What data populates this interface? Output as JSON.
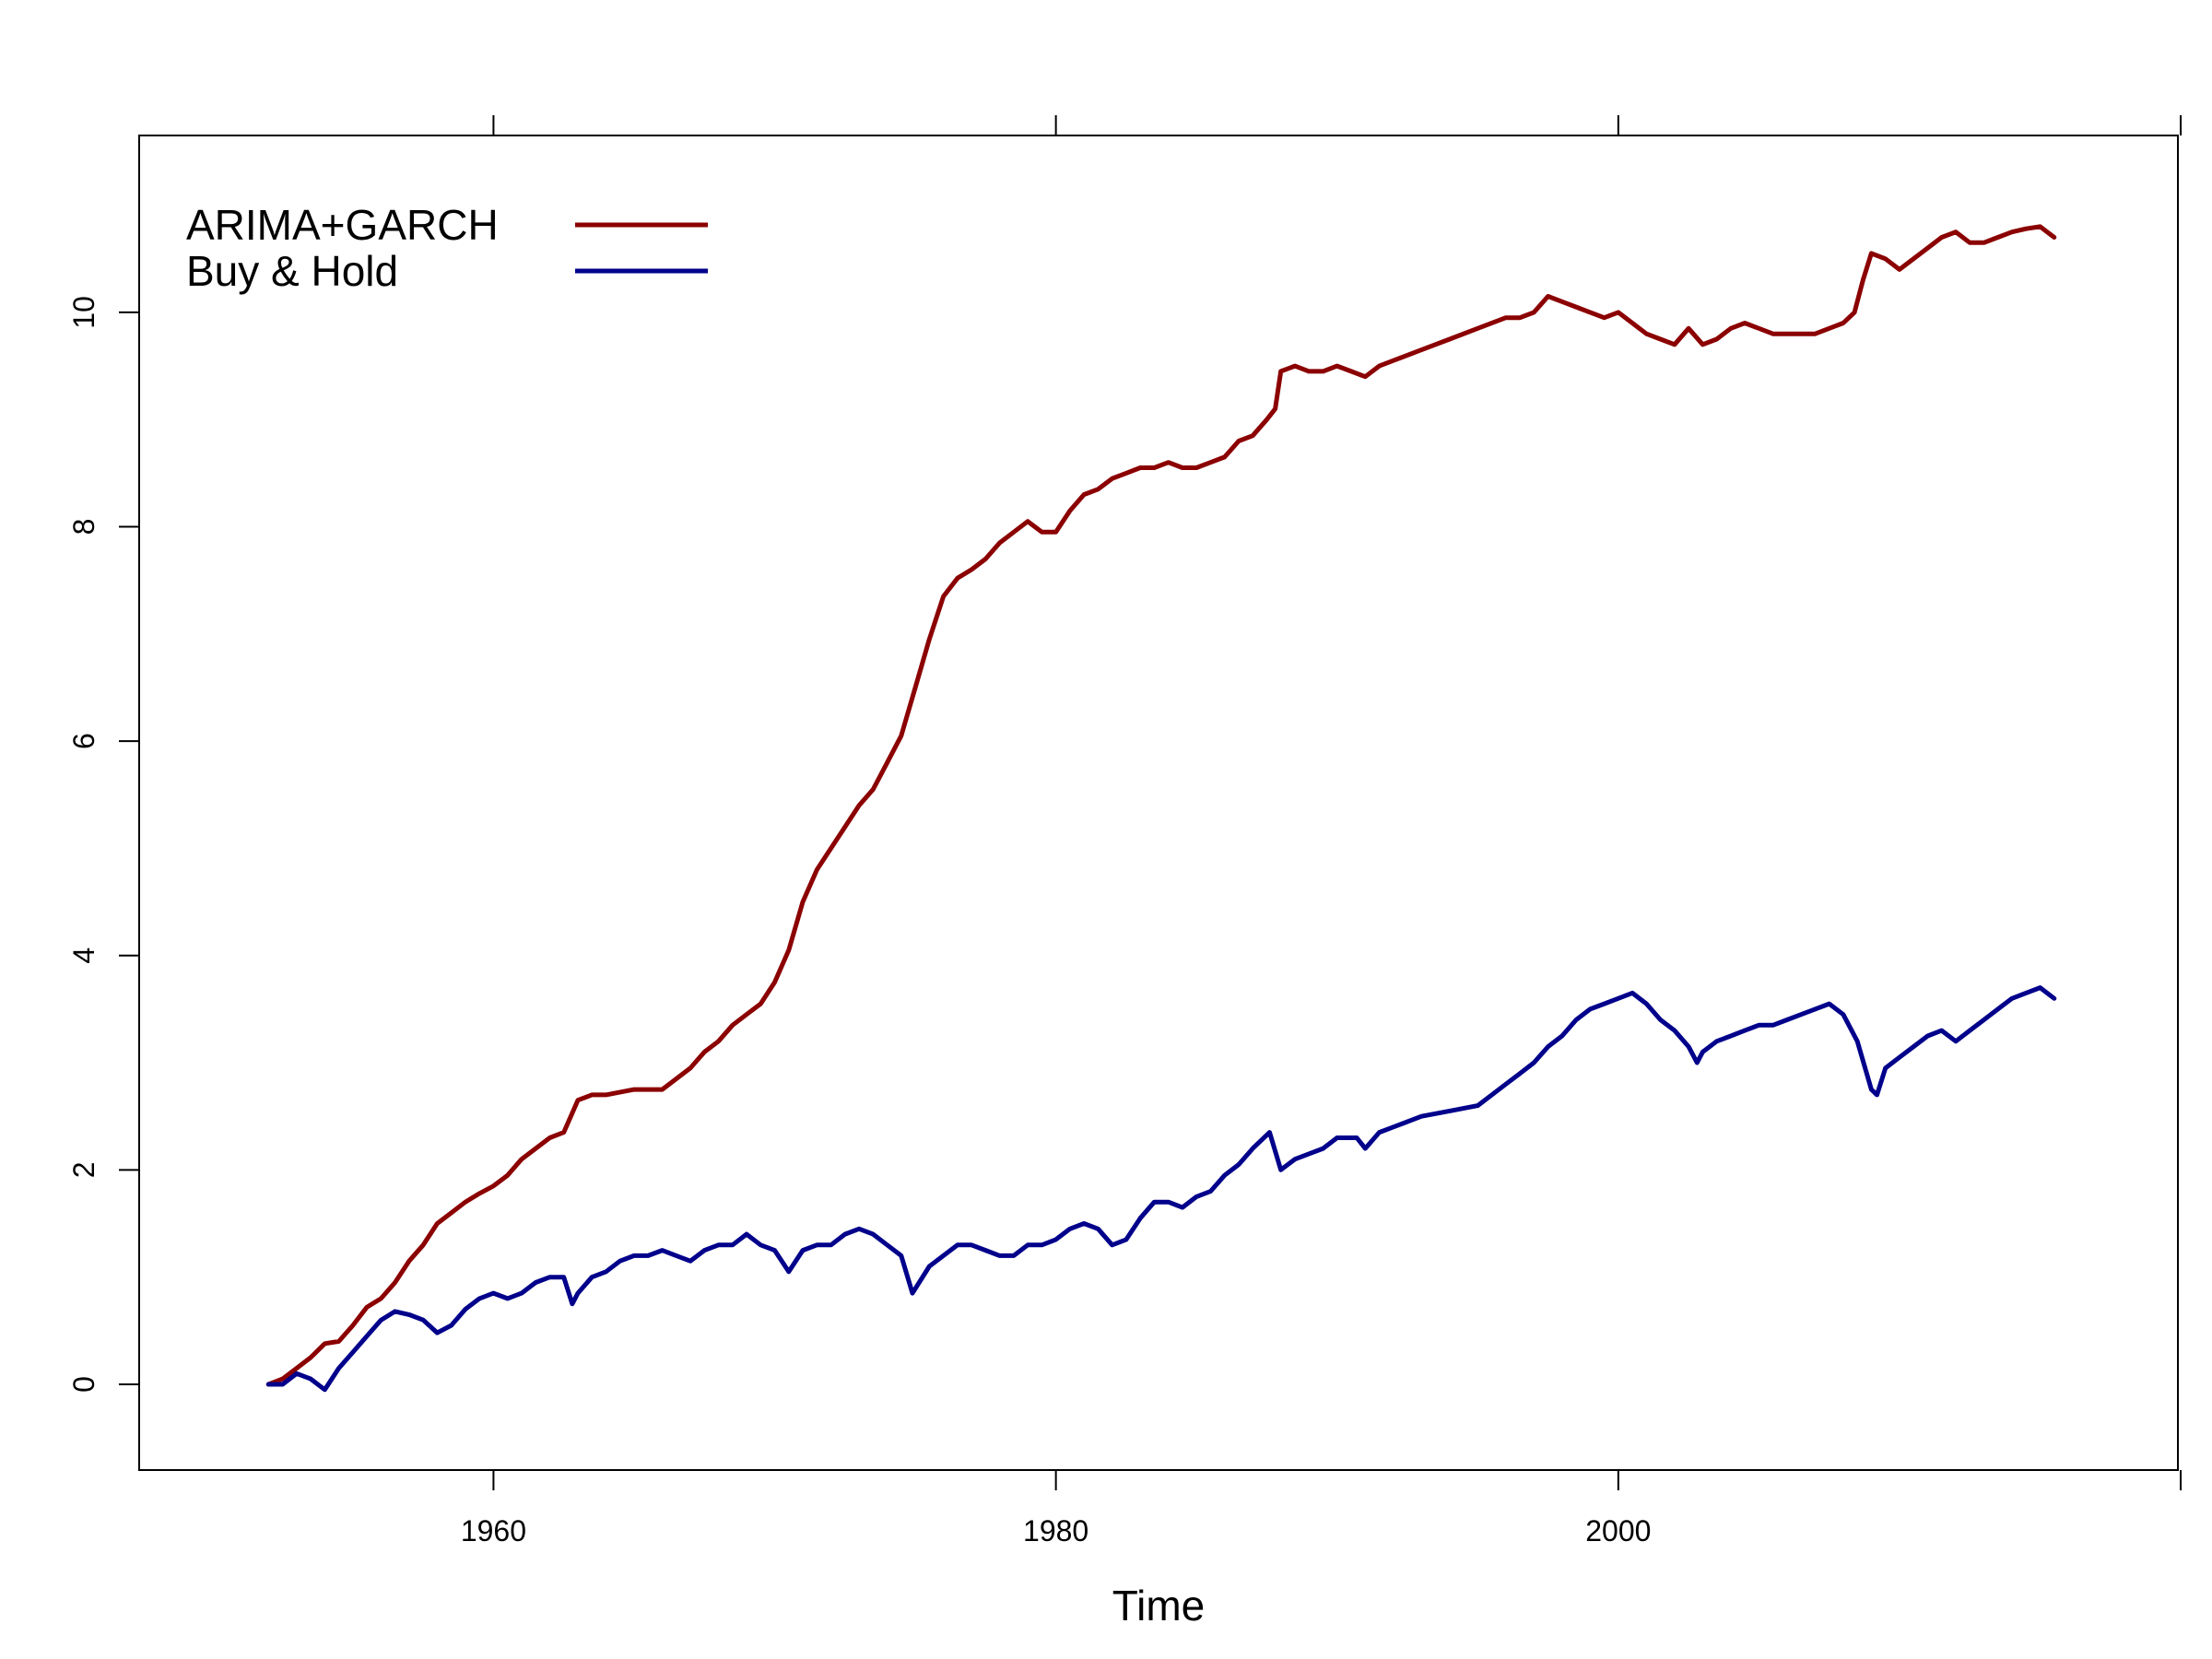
{
  "chart_data": {
    "type": "line",
    "xlabel": "Time",
    "ylabel": "",
    "xlim": [
      1947.4,
      2019.9
    ],
    "ylim": [
      -0.8,
      11.65
    ],
    "x_ticks": [
      1960,
      1980,
      2000
    ],
    "y_ticks": [
      0,
      2,
      4,
      6,
      8,
      10
    ],
    "x_tick_labels": [
      "1960",
      "1980",
      "2000"
    ],
    "y_tick_labels": [
      "0",
      "2",
      "4",
      "6",
      "8",
      "10"
    ],
    "grid": false,
    "legend_position": "top-left",
    "series": [
      {
        "name": "ARIMA+GARCH",
        "color": "#8b0000",
        "x": [
          1952.0,
          1952.5,
          1953.0,
          1953.5,
          1954.0,
          1954.5,
          1955.0,
          1955.5,
          1956.0,
          1956.5,
          1957.0,
          1957.5,
          1958.0,
          1958.5,
          1959.0,
          1959.5,
          1960.0,
          1960.5,
          1961.0,
          1961.5,
          1962.0,
          1962.5,
          1963.0,
          1963.5,
          1964.0,
          1965.0,
          1966.0,
          1967.0,
          1967.5,
          1968.0,
          1968.5,
          1969.0,
          1969.5,
          1970.0,
          1970.5,
          1971.0,
          1971.5,
          1972.0,
          1972.5,
          1973.0,
          1973.5,
          1974.0,
          1974.5,
          1975.0,
          1975.5,
          1976.0,
          1976.5,
          1977.0,
          1977.5,
          1978.0,
          1978.5,
          1979.0,
          1979.5,
          1980.0,
          1980.5,
          1981.0,
          1981.5,
          1982.0,
          1982.5,
          1983.0,
          1983.5,
          1984.0,
          1984.5,
          1985.0,
          1985.5,
          1986.0,
          1986.5,
          1987.0,
          1987.5,
          1987.8,
          1988.0,
          1988.5,
          1989.0,
          1989.5,
          1990.0,
          1990.5,
          1991.0,
          1991.5,
          1992.0,
          1993.0,
          1994.0,
          1995.0,
          1996.0,
          1996.5,
          1997.0,
          1997.5,
          1998.0,
          1998.5,
          1999.0,
          1999.5,
          2000.0,
          2000.5,
          2001.0,
          2001.5,
          2002.0,
          2002.5,
          2003.0,
          2003.5,
          2004.0,
          2004.5,
          2005.0,
          2005.5,
          2006.0,
          2006.5,
          2007.0,
          2007.5,
          2008.0,
          2008.4,
          2008.7,
          2009.0,
          2009.5,
          2010.0,
          2010.5,
          2011.0,
          2011.5,
          2012.0,
          2012.5,
          2013.0,
          2013.5,
          2014.0,
          2014.5,
          2015.0,
          2015.5
        ],
        "y": [
          0.0,
          0.05,
          0.15,
          0.25,
          0.38,
          0.4,
          0.55,
          0.72,
          0.8,
          0.95,
          1.15,
          1.3,
          1.5,
          1.6,
          1.7,
          1.78,
          1.85,
          1.95,
          2.1,
          2.2,
          2.3,
          2.35,
          2.65,
          2.7,
          2.7,
          2.75,
          2.75,
          2.95,
          3.1,
          3.2,
          3.35,
          3.45,
          3.55,
          3.75,
          4.05,
          4.5,
          4.8,
          5.0,
          5.2,
          5.4,
          5.55,
          5.8,
          6.05,
          6.5,
          6.95,
          7.35,
          7.52,
          7.6,
          7.7,
          7.85,
          7.95,
          8.05,
          7.95,
          7.95,
          8.15,
          8.3,
          8.35,
          8.45,
          8.5,
          8.55,
          8.55,
          8.6,
          8.55,
          8.55,
          8.6,
          8.65,
          8.8,
          8.85,
          9.0,
          9.1,
          9.45,
          9.5,
          9.45,
          9.45,
          9.5,
          9.45,
          9.4,
          9.5,
          9.55,
          9.65,
          9.75,
          9.85,
          9.95,
          9.95,
          10.0,
          10.15,
          10.1,
          10.05,
          10.0,
          9.95,
          10.0,
          9.9,
          9.8,
          9.75,
          9.7,
          9.85,
          9.7,
          9.75,
          9.85,
          9.9,
          9.85,
          9.8,
          9.8,
          9.8,
          9.8,
          9.85,
          9.9,
          10.0,
          10.3,
          10.55,
          10.5,
          10.4,
          10.5,
          10.6,
          10.7,
          10.75,
          10.65,
          10.65,
          10.7,
          10.75,
          10.78,
          10.8,
          10.7
        ],
        "end_x": 2015.5,
        "end_y": 10.7
      },
      {
        "name": "Buy & Hold",
        "color": "#00008b",
        "x": [
          1952.0,
          1952.5,
          1953.0,
          1953.5,
          1954.0,
          1954.5,
          1955.0,
          1955.5,
          1956.0,
          1956.5,
          1957.0,
          1957.5,
          1958.0,
          1958.5,
          1959.0,
          1959.5,
          1960.0,
          1960.5,
          1961.0,
          1961.5,
          1962.0,
          1962.5,
          1962.8,
          1963.0,
          1963.5,
          1964.0,
          1964.5,
          1965.0,
          1965.5,
          1966.0,
          1966.5,
          1967.0,
          1967.5,
          1968.0,
          1968.5,
          1969.0,
          1969.5,
          1970.0,
          1970.5,
          1971.0,
          1971.5,
          1972.0,
          1972.5,
          1973.0,
          1973.5,
          1974.0,
          1974.5,
          1974.9,
          1975.5,
          1976.0,
          1976.5,
          1977.0,
          1977.5,
          1978.0,
          1978.5,
          1979.0,
          1979.5,
          1980.0,
          1980.5,
          1981.0,
          1981.5,
          1982.0,
          1982.5,
          1983.0,
          1983.5,
          1984.0,
          1984.5,
          1985.0,
          1985.5,
          1986.0,
          1986.5,
          1987.0,
          1987.6,
          1988.0,
          1988.5,
          1989.0,
          1989.5,
          1990.0,
          1990.7,
          1991.0,
          1991.5,
          1992.0,
          1993.0,
          1994.0,
          1995.0,
          1996.0,
          1996.5,
          1997.0,
          1997.5,
          1998.0,
          1998.5,
          1999.0,
          1999.5,
          2000.0,
          2000.5,
          2001.0,
          2001.5,
          2002.0,
          2002.5,
          2002.8,
          2003.0,
          2003.5,
          2004.0,
          2004.5,
          2005.0,
          2005.5,
          2006.0,
          2006.5,
          2007.0,
          2007.5,
          2008.0,
          2008.5,
          2009.0,
          2009.2,
          2009.5,
          2010.0,
          2010.5,
          2011.0,
          2011.5,
          2012.0,
          2012.5,
          2013.0,
          2013.5,
          2014.0,
          2014.5,
          2015.0,
          2015.5
        ],
        "y": [
          0.0,
          0.0,
          0.1,
          0.05,
          -0.05,
          0.15,
          0.3,
          0.45,
          0.6,
          0.68,
          0.65,
          0.6,
          0.48,
          0.55,
          0.7,
          0.8,
          0.85,
          0.8,
          0.85,
          0.95,
          1.0,
          1.0,
          0.75,
          0.85,
          1.0,
          1.05,
          1.15,
          1.2,
          1.2,
          1.25,
          1.2,
          1.15,
          1.25,
          1.3,
          1.3,
          1.4,
          1.3,
          1.25,
          1.05,
          1.25,
          1.3,
          1.3,
          1.4,
          1.45,
          1.4,
          1.3,
          1.2,
          0.85,
          1.1,
          1.2,
          1.3,
          1.3,
          1.25,
          1.2,
          1.2,
          1.3,
          1.3,
          1.35,
          1.45,
          1.5,
          1.45,
          1.3,
          1.35,
          1.55,
          1.7,
          1.7,
          1.65,
          1.75,
          1.8,
          1.95,
          2.05,
          2.2,
          2.35,
          2.0,
          2.1,
          2.15,
          2.2,
          2.3,
          2.3,
          2.2,
          2.35,
          2.4,
          2.5,
          2.55,
          2.6,
          2.8,
          2.9,
          3.0,
          3.15,
          3.25,
          3.4,
          3.5,
          3.55,
          3.6,
          3.65,
          3.55,
          3.4,
          3.3,
          3.15,
          3.0,
          3.1,
          3.2,
          3.25,
          3.3,
          3.35,
          3.35,
          3.4,
          3.45,
          3.5,
          3.55,
          3.45,
          3.2,
          2.75,
          2.7,
          2.95,
          3.05,
          3.15,
          3.25,
          3.3,
          3.2,
          3.3,
          3.4,
          3.5,
          3.6,
          3.65,
          3.7,
          3.6
        ],
        "end_x": 2015.5,
        "end_y": 3.6
      }
    ]
  }
}
